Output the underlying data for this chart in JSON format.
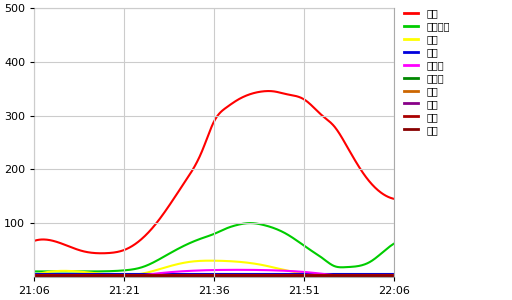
{
  "ylim": [
    0,
    500
  ],
  "xlim": [
    0,
    60
  ],
  "yticks": [
    100,
    200,
    300,
    400,
    500
  ],
  "xtick_labels": [
    "21:06",
    "21:21",
    "21:36",
    "21:51",
    "22:06"
  ],
  "xtick_positions": [
    0,
    15,
    30,
    45,
    60
  ],
  "background_color": "#ffffff",
  "legend_entries": [
    "田老",
    "阿寒湖畴",
    "山形",
    "貞光",
    "南木曽",
    "足寄西",
    "土佐",
    "黒磴",
    "山田",
    "今市"
  ],
  "line_colors": [
    "#ff0000",
    "#00cc00",
    "#ffff00",
    "#0000dd",
    "#ff00ff",
    "#008800",
    "#cc6600",
    "#880088",
    "#aa0000",
    "#880000"
  ],
  "grid_color": "#cccccc",
  "red_x": [
    0,
    5,
    8,
    12,
    15,
    20,
    25,
    28,
    30,
    32,
    34,
    36,
    38,
    40,
    42,
    45,
    48,
    50,
    52,
    55,
    58,
    60
  ],
  "red_y": [
    67,
    60,
    48,
    44,
    50,
    95,
    175,
    235,
    290,
    315,
    330,
    340,
    345,
    345,
    340,
    330,
    300,
    280,
    245,
    190,
    155,
    145
  ],
  "green_x": [
    0,
    5,
    10,
    15,
    18,
    22,
    25,
    28,
    30,
    32,
    34,
    36,
    38,
    42,
    46,
    48,
    50,
    52,
    54,
    56,
    58,
    60
  ],
  "green_y": [
    10,
    10,
    10,
    12,
    18,
    40,
    58,
    72,
    80,
    90,
    97,
    100,
    97,
    80,
    50,
    35,
    20,
    18,
    20,
    28,
    45,
    62
  ],
  "yellow_x": [
    0,
    15,
    18,
    22,
    26,
    30,
    34,
    38,
    42,
    46,
    50,
    60
  ],
  "yellow_y": [
    3,
    3,
    6,
    18,
    28,
    30,
    28,
    22,
    12,
    5,
    3,
    3
  ],
  "blue_x": [
    0,
    60
  ],
  "blue_y": [
    5,
    5
  ],
  "magenta_x": [
    0,
    18,
    22,
    28,
    34,
    40,
    46,
    50,
    60
  ],
  "magenta_y": [
    3,
    3,
    8,
    12,
    13,
    12,
    8,
    3,
    3
  ],
  "other_y": 3
}
